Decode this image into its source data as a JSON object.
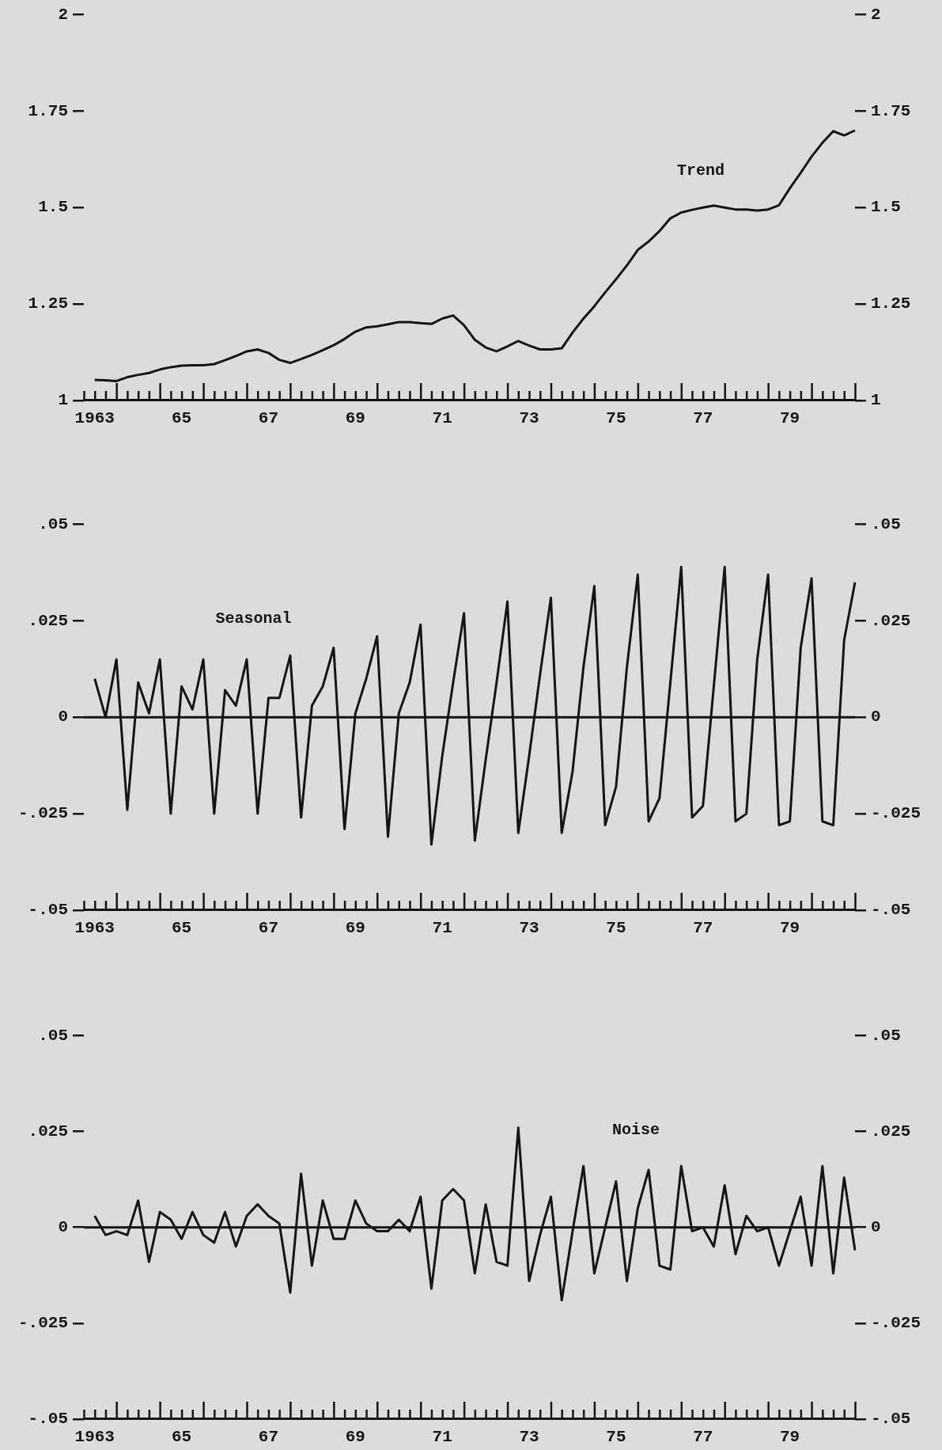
{
  "chart_data": [
    {
      "type": "line",
      "categories": [
        null,
        "1963",
        null,
        null,
        null,
        null,
        null,
        null,
        null,
        "65",
        null,
        null,
        null,
        null,
        null,
        null,
        null,
        "67",
        null,
        null,
        null,
        null,
        null,
        null,
        null,
        "69",
        null,
        null,
        null,
        null,
        null,
        null,
        null,
        "71",
        null,
        null,
        null,
        null,
        null,
        null,
        null,
        "73",
        null,
        null,
        null,
        null,
        null,
        null,
        null,
        "75",
        null,
        null,
        null,
        null,
        null,
        null,
        null,
        "77",
        null,
        null,
        null,
        null,
        null,
        null,
        null,
        "79",
        null,
        null,
        null,
        null,
        null,
        null
      ],
      "ylim": [
        1,
        2
      ],
      "yticks": [
        1,
        1.25,
        1.5,
        1.75,
        2
      ],
      "y2lim": [
        1,
        2
      ],
      "y2ticks": [
        1,
        1.25,
        1.5,
        1.75,
        2
      ],
      "series": [
        {
          "name": "Trend",
          "color": "#151515",
          "values": [
            null,
            1.053,
            1.052,
            1.05,
            1.06,
            1.066,
            1.071,
            1.08,
            1.086,
            1.09,
            1.091,
            1.091,
            1.094,
            1.104,
            1.115,
            1.127,
            1.132,
            1.123,
            1.105,
            1.097,
            1.107,
            1.118,
            1.13,
            1.143,
            1.159,
            1.178,
            1.189,
            1.192,
            1.197,
            1.203,
            1.203,
            1.2,
            1.198,
            1.212,
            1.22,
            1.195,
            1.157,
            1.137,
            1.127,
            1.14,
            1.154,
            1.142,
            1.132,
            1.132,
            1.135,
            1.176,
            1.212,
            1.244,
            1.28,
            1.314,
            1.35,
            1.39,
            1.412,
            1.439,
            1.472,
            1.487,
            1.494,
            1.5,
            1.505,
            1.5,
            1.495,
            1.495,
            1.492,
            1.495,
            1.506,
            1.55,
            1.59,
            1.632,
            1.668,
            1.698,
            1.687,
            1.7
          ]
        }
      ]
    },
    {
      "type": "line",
      "categories": [
        null,
        "1963",
        null,
        null,
        null,
        null,
        null,
        null,
        null,
        "65",
        null,
        null,
        null,
        null,
        null,
        null,
        null,
        "67",
        null,
        null,
        null,
        null,
        null,
        null,
        null,
        "69",
        null,
        null,
        null,
        null,
        null,
        null,
        null,
        "71",
        null,
        null,
        null,
        null,
        null,
        null,
        null,
        "73",
        null,
        null,
        null,
        null,
        null,
        null,
        null,
        "75",
        null,
        null,
        null,
        null,
        null,
        null,
        null,
        "77",
        null,
        null,
        null,
        null,
        null,
        null,
        null,
        "79",
        null,
        null,
        null,
        null,
        null,
        null
      ],
      "ylim": [
        -0.05,
        0.05
      ],
      "yticks": [
        {
          "value": -0.05,
          "label": "-.05"
        },
        {
          "value": -0.025,
          "label": "-.025"
        },
        0,
        {
          "value": 0.025,
          "label": ".025"
        },
        {
          "value": 0.05,
          "label": ".05"
        }
      ],
      "y2lim": [
        -0.05,
        0.05
      ],
      "y2ticks": [
        {
          "value": -0.05,
          "label": "-.05"
        },
        {
          "value": -0.025,
          "label": "-.025"
        },
        0,
        {
          "value": 0.025,
          "label": ".025"
        },
        {
          "value": 0.05,
          "label": ".05"
        }
      ],
      "ref_lines": [
        {
          "axis": "y",
          "value": 0
        }
      ],
      "series": [
        {
          "name": "Seasonal",
          "color": "#151515",
          "values": [
            null,
            0.01,
            0.0,
            0.015,
            -0.024,
            0.009,
            0.001,
            0.015,
            -0.025,
            0.008,
            0.002,
            0.015,
            -0.025,
            0.007,
            0.003,
            0.015,
            -0.025,
            0.005,
            0.005,
            0.016,
            -0.026,
            0.003,
            0.008,
            0.018,
            -0.029,
            0.001,
            0.01,
            0.021,
            -0.031,
            0.001,
            0.009,
            0.024,
            -0.033,
            -0.01,
            0.009,
            0.027,
            -0.032,
            -0.011,
            0.009,
            0.03,
            -0.03,
            -0.01,
            0.011,
            0.031,
            -0.03,
            -0.014,
            0.013,
            0.034,
            -0.028,
            -0.018,
            0.013,
            0.037,
            -0.027,
            -0.021,
            0.009,
            0.039,
            -0.026,
            -0.023,
            0.008,
            0.039,
            -0.027,
            -0.025,
            0.015,
            0.037,
            -0.028,
            -0.027,
            0.018,
            0.036,
            -0.027,
            -0.028,
            0.02,
            0.035
          ]
        }
      ]
    },
    {
      "type": "line",
      "categories": [
        null,
        "1963",
        null,
        null,
        null,
        null,
        null,
        null,
        null,
        "65",
        null,
        null,
        null,
        null,
        null,
        null,
        null,
        "67",
        null,
        null,
        null,
        null,
        null,
        null,
        null,
        "69",
        null,
        null,
        null,
        null,
        null,
        null,
        null,
        "71",
        null,
        null,
        null,
        null,
        null,
        null,
        null,
        "73",
        null,
        null,
        null,
        null,
        null,
        null,
        null,
        "75",
        null,
        null,
        null,
        null,
        null,
        null,
        null,
        "77",
        null,
        null,
        null,
        null,
        null,
        null,
        null,
        "79",
        null,
        null,
        null,
        null,
        null,
        null
      ],
      "ylim": [
        -0.05,
        0.05
      ],
      "yticks": [
        {
          "value": -0.05,
          "label": "-.05"
        },
        {
          "value": -0.025,
          "label": "-.025"
        },
        0,
        {
          "value": 0.025,
          "label": ".025"
        },
        {
          "value": 0.05,
          "label": ".05"
        }
      ],
      "y2lim": [
        -0.05,
        0.05
      ],
      "y2ticks": [
        {
          "value": -0.05,
          "label": "-.05"
        },
        {
          "value": -0.025,
          "label": "-.025"
        },
        0,
        {
          "value": 0.025,
          "label": ".025"
        },
        {
          "value": 0.05,
          "label": ".05"
        }
      ],
      "ref_lines": [
        {
          "axis": "y",
          "value": 0
        }
      ],
      "series": [
        {
          "name": "Noise",
          "color": "#151515",
          "values": [
            null,
            0.003,
            -0.002,
            -0.001,
            -0.002,
            0.007,
            -0.009,
            0.004,
            0.002,
            -0.003,
            0.004,
            -0.002,
            -0.004,
            0.004,
            -0.005,
            0.003,
            0.006,
            0.003,
            0.001,
            -0.017,
            0.014,
            -0.01,
            0.007,
            -0.003,
            -0.003,
            0.007,
            0.001,
            -0.001,
            -0.001,
            0.002,
            -0.001,
            0.008,
            -0.016,
            0.007,
            0.01,
            0.007,
            -0.012,
            0.006,
            -0.009,
            -0.01,
            0.026,
            -0.014,
            -0.002,
            0.008,
            -0.019,
            -0.001,
            0.016,
            -0.012,
            0.0,
            0.012,
            -0.014,
            0.005,
            0.015,
            -0.01,
            -0.011,
            0.016,
            -0.001,
            0.0,
            -0.005,
            0.011,
            -0.007,
            0.003,
            -0.001,
            0.0,
            -0.01,
            -0.001,
            0.008,
            -0.01,
            0.016,
            -0.012,
            0.013,
            -0.006
          ]
        }
      ]
    }
  ]
}
